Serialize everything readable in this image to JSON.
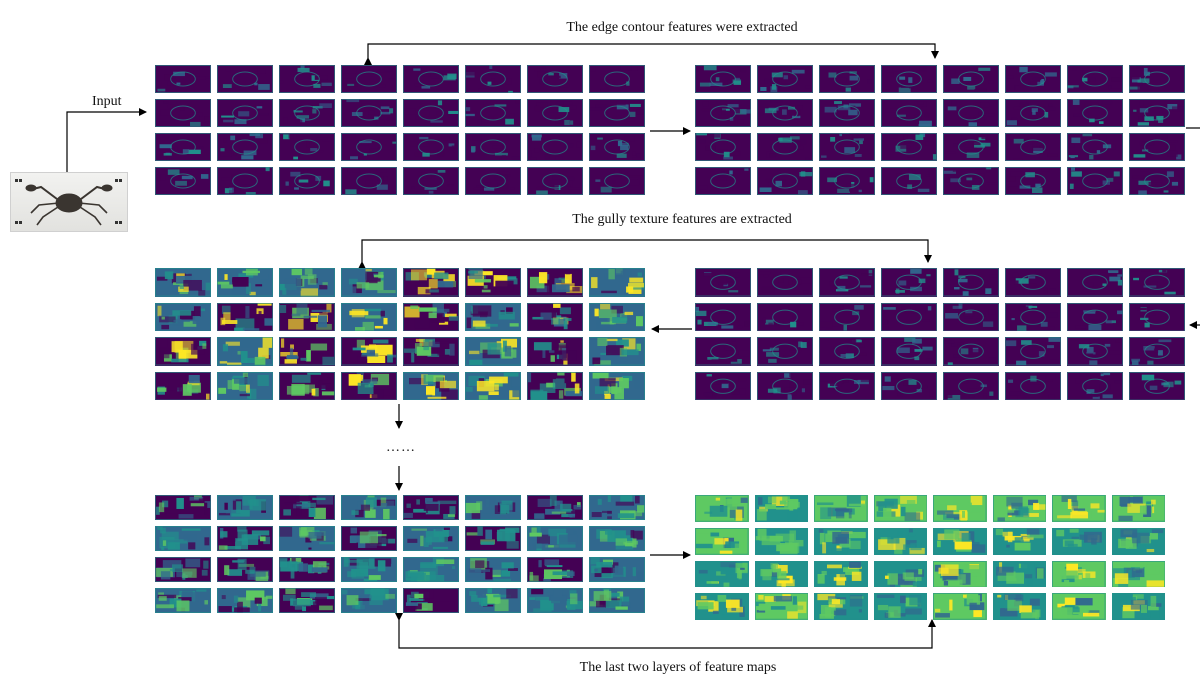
{
  "captions": {
    "edge": "The edge contour features were extracted",
    "gully": "The gully texture features are extracted",
    "last": "The last two layers of feature maps"
  },
  "input_label": "Input",
  "ellipsis": "……",
  "colormap": {
    "dark": "#440154",
    "teal": "#21918c",
    "green": "#5ec962",
    "yellow": "#fde725",
    "blue": "#31688e"
  },
  "blocks": [
    {
      "id": "block-1",
      "rows": 4,
      "cols": 8,
      "style": "edge"
    },
    {
      "id": "block-2",
      "rows": 4,
      "cols": 8,
      "style": "edge"
    },
    {
      "id": "block-3",
      "rows": 4,
      "cols": 8,
      "style": "texture"
    },
    {
      "id": "block-4",
      "rows": 4,
      "cols": 8,
      "style": "edge"
    },
    {
      "id": "block-5",
      "rows": 4,
      "cols": 8,
      "style": "mixed"
    },
    {
      "id": "block-6",
      "rows": 4,
      "cols": 8,
      "style": "deep"
    }
  ]
}
